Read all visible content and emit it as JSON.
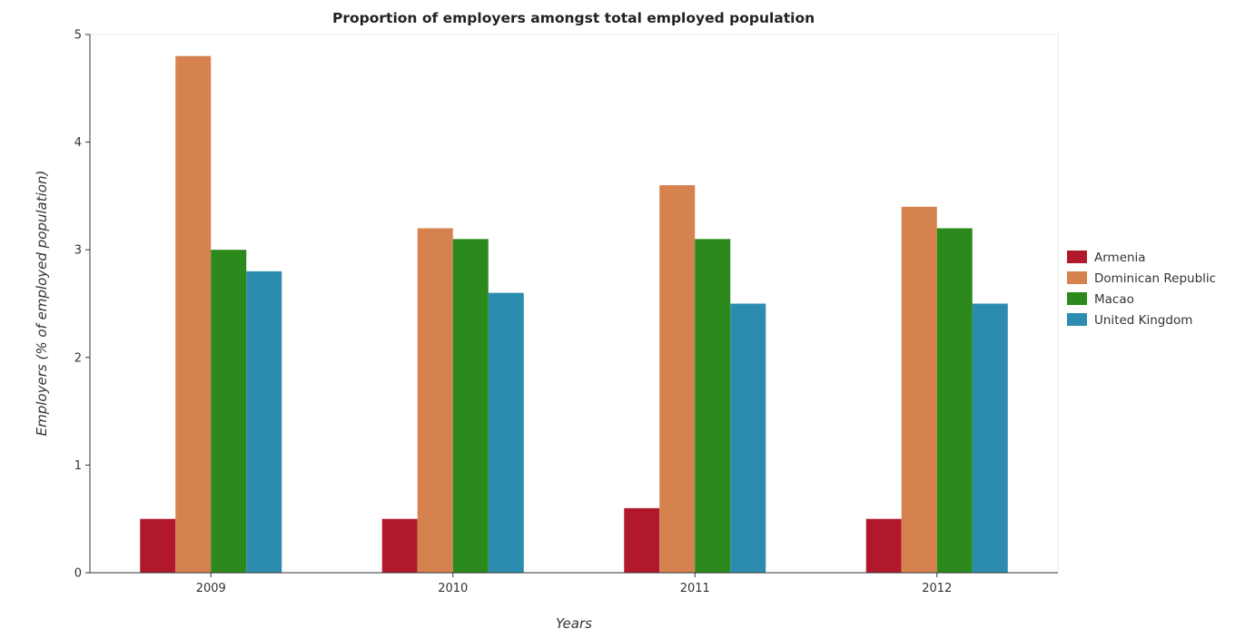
{
  "title": "Proportion of employers amongst total employed population",
  "chart_data": {
    "type": "bar",
    "title": "Proportion of employers amongst total employed population",
    "xlabel": "Years",
    "ylabel": "Employers (% of employed population)",
    "categories": [
      "2009",
      "2010",
      "2011",
      "2012"
    ],
    "ylim": [
      0,
      5
    ],
    "yticks": [
      "0",
      "1",
      "2",
      "3",
      "4",
      "5"
    ],
    "grid": false,
    "legend_position": "right",
    "series": [
      {
        "name": "Armenia",
        "color": "#b2182b",
        "values": [
          0.5,
          0.5,
          0.6,
          0.5
        ]
      },
      {
        "name": "Dominican Republic",
        "color": "#d6824f",
        "values": [
          4.8,
          3.2,
          3.6,
          3.4
        ]
      },
      {
        "name": "Macao",
        "color": "#2b8a1b",
        "values": [
          3.0,
          3.1,
          3.1,
          3.2
        ]
      },
      {
        "name": "United Kingdom",
        "color": "#2b8cb0",
        "values": [
          2.8,
          2.6,
          2.5,
          2.5
        ]
      }
    ]
  }
}
